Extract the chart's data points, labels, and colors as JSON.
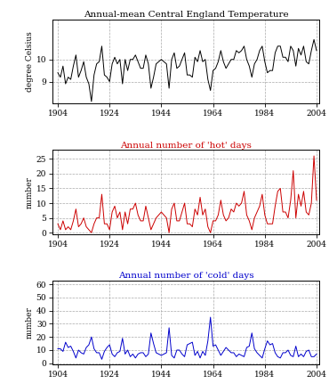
{
  "title1": "Annual-mean Central England Temperature",
  "title2": "Annual number of 'hot' days",
  "title3": "Annual number of 'cold' days",
  "ylabel1": "degree Celsius",
  "ylabel2": "number",
  "ylabel3": "number",
  "xlim": [
    1902,
    2005
  ],
  "xticks": [
    1904,
    1924,
    1944,
    1964,
    1984,
    2004
  ],
  "ylim1": [
    8.0,
    11.8
  ],
  "yticks1": [
    9,
    10
  ],
  "ylim2": [
    -0.5,
    28
  ],
  "yticks2": [
    0,
    5,
    10,
    15,
    20,
    25
  ],
  "ylim3": [
    -1,
    63
  ],
  "yticks3": [
    0,
    10,
    20,
    30,
    40,
    50,
    60
  ],
  "color1": "black",
  "color2": "#cc0000",
  "color3": "#0000cc",
  "grid_color": "#aaaaaa",
  "bg_color": "#ffffff",
  "title2_color": "#cc0000",
  "title3_color": "#0000cc",
  "years": [
    1904,
    1905,
    1906,
    1907,
    1908,
    1909,
    1910,
    1911,
    1912,
    1913,
    1914,
    1915,
    1916,
    1917,
    1918,
    1919,
    1920,
    1921,
    1922,
    1923,
    1924,
    1925,
    1926,
    1927,
    1928,
    1929,
    1930,
    1931,
    1932,
    1933,
    1934,
    1935,
    1936,
    1937,
    1938,
    1939,
    1940,
    1941,
    1942,
    1943,
    1944,
    1945,
    1946,
    1947,
    1948,
    1949,
    1950,
    1951,
    1952,
    1953,
    1954,
    1955,
    1956,
    1957,
    1958,
    1959,
    1960,
    1961,
    1962,
    1963,
    1964,
    1965,
    1966,
    1967,
    1968,
    1969,
    1970,
    1971,
    1972,
    1973,
    1974,
    1975,
    1976,
    1977,
    1978,
    1979,
    1980,
    1981,
    1982,
    1983,
    1984,
    1985,
    1986,
    1987,
    1988,
    1989,
    1990,
    1991,
    1992,
    1993,
    1994,
    1995,
    1996,
    1997,
    1998,
    1999,
    2000,
    2001,
    2002,
    2003,
    2004
  ],
  "temp": [
    9.4,
    9.2,
    9.7,
    8.9,
    9.2,
    9.1,
    9.7,
    10.2,
    9.2,
    9.5,
    9.9,
    9.2,
    8.9,
    8.1,
    9.3,
    9.8,
    9.9,
    10.6,
    9.3,
    9.2,
    9.0,
    9.8,
    10.1,
    9.8,
    10.0,
    8.9,
    10.0,
    9.5,
    10.0,
    10.0,
    10.2,
    9.9,
    9.6,
    9.6,
    10.2,
    9.8,
    8.7,
    9.2,
    9.8,
    9.9,
    10.0,
    9.9,
    9.8,
    8.7,
    10.0,
    10.3,
    9.6,
    9.7,
    10.0,
    10.3,
    9.3,
    9.3,
    9.2,
    10.1,
    9.9,
    10.4,
    9.9,
    10.0,
    9.1,
    8.6,
    9.5,
    9.6,
    9.9,
    10.4,
    9.9,
    9.6,
    9.8,
    10.0,
    10.0,
    10.4,
    10.3,
    10.4,
    10.6,
    10.0,
    9.7,
    9.2,
    9.8,
    10.0,
    10.4,
    10.6,
    9.9,
    9.4,
    9.5,
    9.5,
    10.3,
    10.6,
    10.6,
    10.1,
    10.1,
    9.9,
    10.6,
    10.4,
    9.7,
    10.5,
    10.2,
    10.6,
    9.9,
    9.8,
    10.4,
    10.9,
    10.4
  ],
  "hot": [
    3,
    1,
    4,
    1,
    2,
    1,
    4,
    8,
    2,
    3,
    5,
    2,
    1,
    0,
    3,
    5,
    5,
    13,
    3,
    3,
    1,
    7,
    9,
    5,
    7,
    1,
    7,
    3,
    8,
    8,
    10,
    6,
    4,
    4,
    9,
    5,
    1,
    3,
    5,
    6,
    7,
    6,
    5,
    0,
    8,
    10,
    4,
    4,
    7,
    10,
    3,
    3,
    2,
    8,
    6,
    12,
    6,
    8,
    2,
    0,
    4,
    4,
    6,
    11,
    6,
    4,
    5,
    8,
    7,
    10,
    9,
    10,
    14,
    6,
    4,
    1,
    5,
    7,
    9,
    13,
    6,
    3,
    3,
    3,
    9,
    14,
    15,
    7,
    7,
    5,
    11,
    21,
    5,
    13,
    9,
    14,
    7,
    6,
    10,
    26,
    11
  ],
  "cold": [
    11,
    11,
    9,
    16,
    12,
    13,
    9,
    4,
    10,
    8,
    7,
    12,
    14,
    20,
    11,
    8,
    8,
    3,
    9,
    12,
    14,
    7,
    5,
    8,
    9,
    19,
    7,
    10,
    5,
    7,
    4,
    7,
    8,
    8,
    5,
    7,
    23,
    15,
    8,
    7,
    6,
    7,
    8,
    27,
    6,
    4,
    10,
    10,
    7,
    5,
    14,
    15,
    16,
    6,
    9,
    4,
    9,
    6,
    17,
    35,
    13,
    14,
    10,
    6,
    9,
    12,
    10,
    8,
    8,
    5,
    7,
    6,
    5,
    12,
    13,
    23,
    11,
    8,
    6,
    4,
    11,
    17,
    14,
    15,
    8,
    5,
    4,
    8,
    8,
    10,
    6,
    5,
    13,
    5,
    7,
    5,
    9,
    10,
    5,
    5,
    7
  ]
}
